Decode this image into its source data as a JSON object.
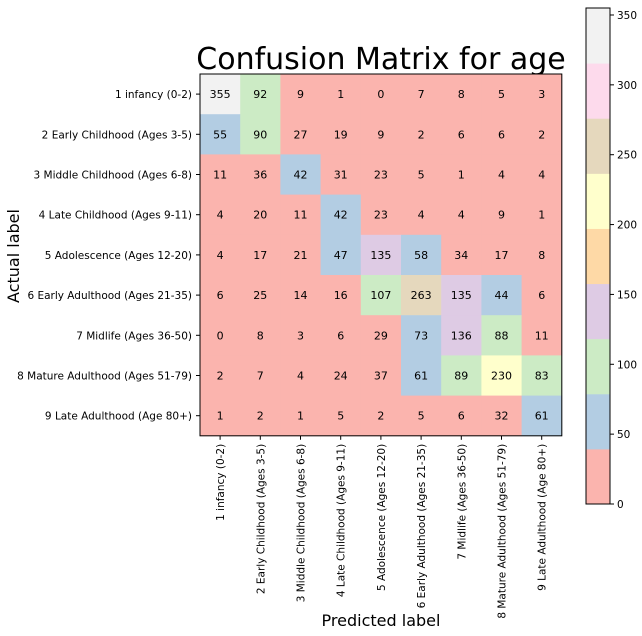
{
  "chart_data": {
    "type": "heatmap",
    "title": "Confusion Matrix for age",
    "xlabel": "Predicted label",
    "ylabel": "Actual label",
    "categories": [
      "1 infancy (0-2)",
      "2 Early Childhood (Ages 3-5)",
      "3 Middle Childhood (Ages 6-8)",
      "4 Late Childhood (Ages 9-11)",
      "5 Adolescence (Ages 12-20)",
      "6 Early Adulthood (Ages 21-35)",
      "7 Midlife (Ages 36-50)",
      "8 Mature Adulthood (Ages 51-79)",
      "9 Late Adulthood (Age 80+)"
    ],
    "matrix": [
      [
        355,
        92,
        9,
        1,
        0,
        7,
        8,
        5,
        3
      ],
      [
        55,
        90,
        27,
        19,
        9,
        2,
        6,
        6,
        2
      ],
      [
        11,
        36,
        42,
        31,
        23,
        5,
        1,
        4,
        4
      ],
      [
        4,
        20,
        11,
        42,
        23,
        4,
        4,
        9,
        1
      ],
      [
        4,
        17,
        21,
        47,
        135,
        58,
        34,
        17,
        8
      ],
      [
        6,
        25,
        14,
        16,
        107,
        263,
        135,
        44,
        6
      ],
      [
        0,
        8,
        3,
        6,
        29,
        73,
        136,
        88,
        11
      ],
      [
        2,
        7,
        4,
        24,
        37,
        61,
        89,
        230,
        83
      ],
      [
        1,
        2,
        1,
        5,
        2,
        5,
        6,
        32,
        61
      ]
    ],
    "colormap": "Pastel1",
    "colorbar": {
      "vmin": 0,
      "vmax": 355,
      "ticks": [
        0,
        50,
        100,
        150,
        200,
        250,
        300,
        350
      ],
      "colors": [
        "#fbb4ae",
        "#b3cde3",
        "#ccebc5",
        "#decbe4",
        "#fed9a6",
        "#ffffcc",
        "#e5d8bd",
        "#fddaec",
        "#f2f2f2"
      ]
    },
    "grid": false
  }
}
